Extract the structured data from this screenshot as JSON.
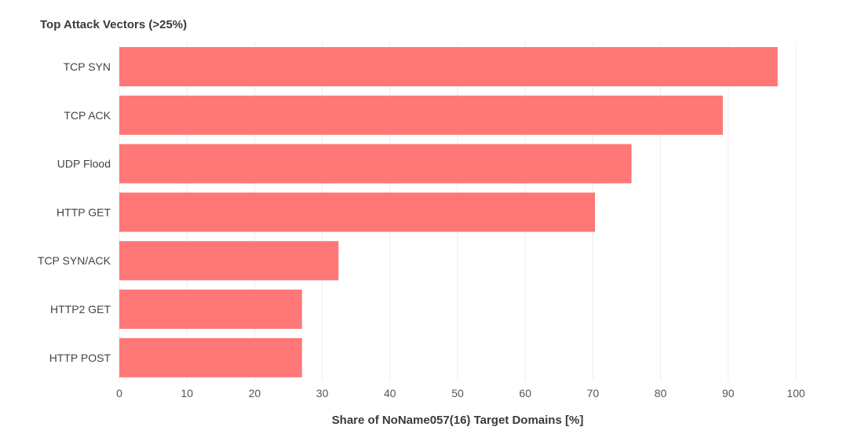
{
  "chart_data": {
    "type": "bar",
    "orientation": "horizontal",
    "title": "Top Attack Vectors (>25%)",
    "xlabel": "Share of NoName057(16) Target Domains [%]",
    "ylabel": "",
    "categories": [
      "TCP SYN",
      "TCP ACK",
      "UDP Flood",
      "HTTP GET",
      "TCP SYN/ACK",
      "HTTP2 GET",
      "HTTP POST"
    ],
    "values": [
      97.3,
      89.2,
      75.7,
      70.3,
      32.4,
      27.0,
      27.0
    ],
    "xlim": [
      0,
      100
    ],
    "xticks": [
      "0",
      "10",
      "20",
      "30",
      "40",
      "50",
      "60",
      "70",
      "80",
      "90",
      "100"
    ],
    "grid": true,
    "legend": "none",
    "bar_color": "#ff7777"
  }
}
